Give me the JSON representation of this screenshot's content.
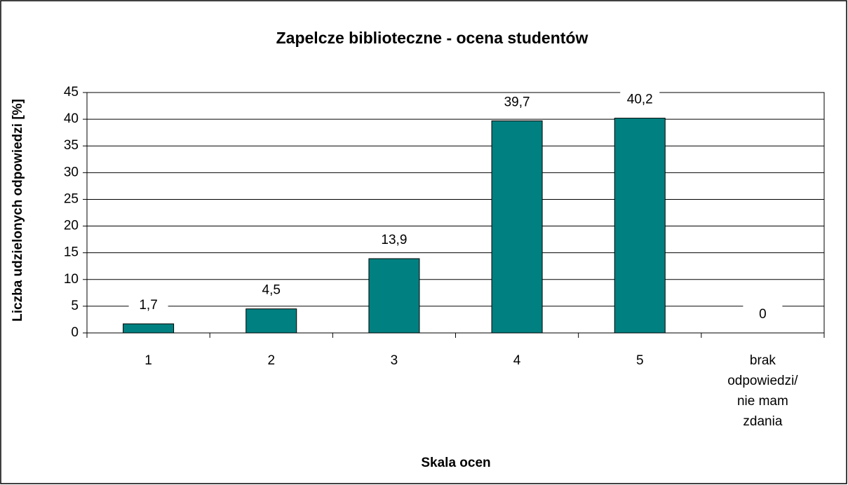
{
  "chart_data": {
    "type": "bar",
    "title": "Zapelcze biblioteczne - ocena studentów",
    "x_label": "Skala ocen",
    "y_label": "Liczba udzielonych odpowiedzi [%]",
    "categories": [
      "1",
      "2",
      "3",
      "4",
      "5",
      "brak odpowiedzi/ nie mam zdania"
    ],
    "values": [
      1.7,
      4.5,
      13.9,
      39.7,
      40.2,
      0
    ],
    "value_labels": [
      "1,7",
      "4,5",
      "13,9",
      "39,7",
      "40,2",
      "0"
    ],
    "color": "#008080",
    "ylim": [
      0,
      45
    ],
    "yticks": [
      0,
      5,
      10,
      15,
      20,
      25,
      30,
      35,
      40,
      45
    ],
    "grid": true
  }
}
